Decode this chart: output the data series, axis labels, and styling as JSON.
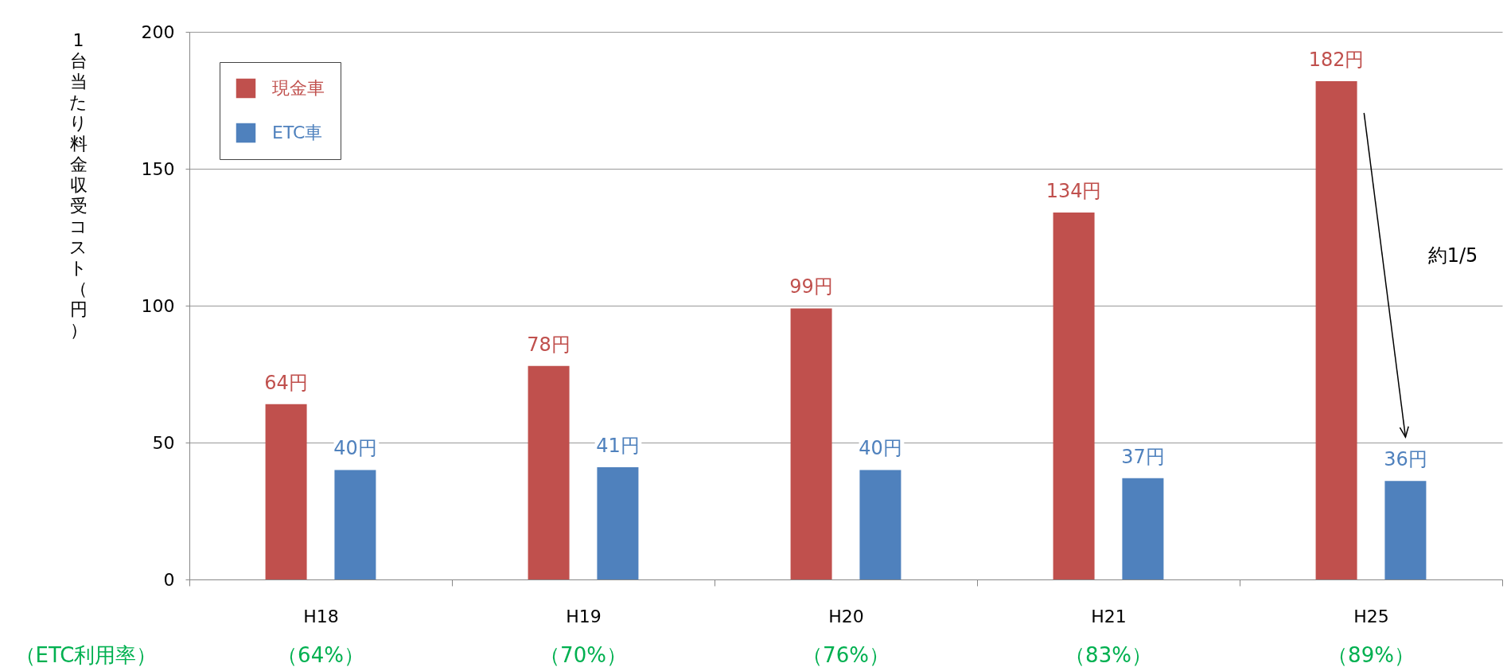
{
  "chart_data": {
    "type": "bar",
    "ylabel": "1台当たり料金収受コスト（円）",
    "categories": [
      "H18",
      "H19",
      "H20",
      "H21",
      "H25"
    ],
    "series": [
      {
        "name": "現金車",
        "color": "#c0504d",
        "values": [
          64,
          78,
          99,
          134,
          182
        ],
        "value_labels": [
          "64円",
          "78円",
          "99円",
          "134円",
          "182円"
        ]
      },
      {
        "name": "ETC車",
        "color": "#4f81bd",
        "values": [
          40,
          41,
          40,
          37,
          36
        ],
        "value_labels": [
          "40円",
          "41円",
          "40円",
          "37円",
          "36円"
        ]
      }
    ],
    "ylim": [
      0,
      200
    ],
    "yticks": [
      0,
      50,
      100,
      150,
      200
    ],
    "grid": "y",
    "legend": "top left",
    "annotations": [
      "約1/5",
      "（ETC利用率）",
      "（64%）",
      "（70%）",
      "（76%）",
      "（83%）",
      "（89%）"
    ]
  }
}
